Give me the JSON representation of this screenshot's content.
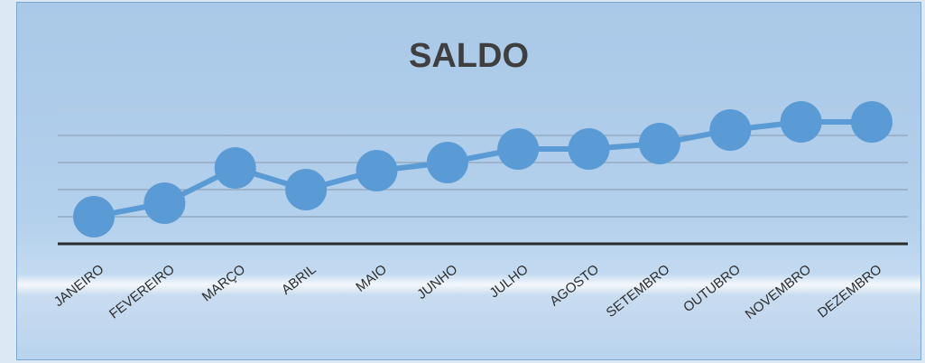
{
  "chart_data": {
    "type": "line",
    "title": "SALDO",
    "xlabel": "",
    "ylabel": "",
    "categories": [
      "JANEIRO",
      "FEVEREIRO",
      "MARÇO",
      "ABRIL",
      "MAIO",
      "JUNHO",
      "JULHO",
      "AGOSTO",
      "SETEMBRO",
      "OUTUBRO",
      "NOVEMBRO",
      "DEZEMBRO"
    ],
    "series": [
      {
        "values": [
          1.0,
          1.5,
          2.8,
          2.0,
          2.7,
          3.0,
          3.5,
          3.5,
          3.7,
          4.2,
          4.5,
          4.5
        ]
      }
    ],
    "ylim": [
      0,
      5
    ],
    "grid": true,
    "legend": "none",
    "colors": {
      "line": "#5b9bd5",
      "gridline": "#8fa3b8",
      "axis": "#2b2b2b"
    }
  }
}
